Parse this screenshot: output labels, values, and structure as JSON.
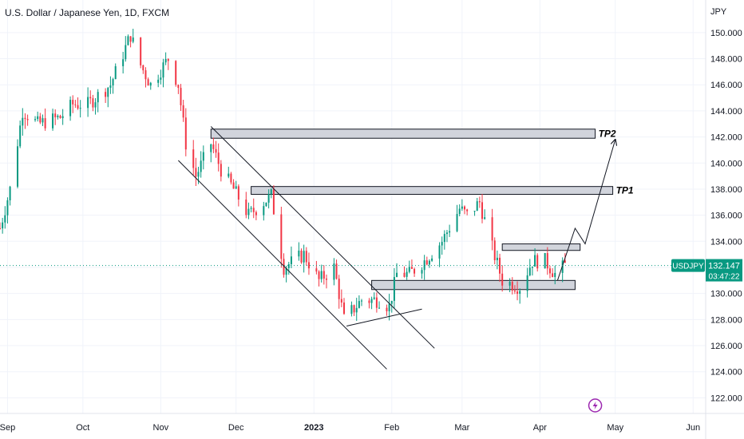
{
  "chart_data": {
    "type": "candlestick",
    "title": "U.S. Dollar / Japanese Yen, 1D, FXCM",
    "currency_label": "JPY",
    "symbol": "USDJPY",
    "last_price": "132.147",
    "countdown": "03:47:22",
    "ylim": [
      120.8,
      152.5
    ],
    "y_ticks": [
      "150.000",
      "148.000",
      "146.000",
      "144.000",
      "142.000",
      "140.000",
      "138.000",
      "136.000",
      "134.000",
      "132.000",
      "130.000",
      "128.000",
      "126.000",
      "124.000",
      "122.000"
    ],
    "x_ticks": [
      "Sep",
      "Oct",
      "Nov",
      "Dec",
      "2023",
      "Feb",
      "Mar",
      "Apr",
      "May",
      "Jun"
    ],
    "x_tick_dates": [
      "2022-09-01",
      "2022-10-01",
      "2022-11-01",
      "2022-12-01",
      "2023-01-01",
      "2023-02-01",
      "2023-03-01",
      "2023-04-01",
      "2023-05-01",
      "2023-06-01"
    ],
    "x_range": [
      "2022-08-29",
      "2023-06-06"
    ],
    "up_color": "#089981",
    "down_color": "#f23645",
    "waypoints": [
      [
        "2022-08-29",
        135.0
      ],
      [
        "2022-09-02",
        138.0
      ],
      [
        "2022-09-07",
        144.0
      ],
      [
        "2022-09-13",
        143.0
      ],
      [
        "2022-09-22",
        143.5
      ],
      [
        "2022-09-27",
        144.5
      ],
      [
        "2022-10-03",
        144.5
      ],
      [
        "2022-10-12",
        146.0
      ],
      [
        "2022-10-20",
        149.8
      ],
      [
        "2022-10-24",
        147.5
      ],
      [
        "2022-10-28",
        146.0
      ],
      [
        "2022-11-04",
        148.0
      ],
      [
        "2022-11-08",
        146.0
      ],
      [
        "2022-11-11",
        141.5
      ],
      [
        "2022-11-15",
        139.0
      ],
      [
        "2022-11-21",
        141.5
      ],
      [
        "2022-11-25",
        139.5
      ],
      [
        "2022-11-30",
        138.0
      ],
      [
        "2022-12-06",
        136.0
      ],
      [
        "2022-12-09",
        136.5
      ],
      [
        "2022-12-15",
        137.5
      ],
      [
        "2022-12-20",
        132.0
      ],
      [
        "2022-12-28",
        133.0
      ],
      [
        "2023-01-03",
        131.0
      ],
      [
        "2023-01-09",
        132.0
      ],
      [
        "2023-01-13",
        128.0
      ],
      [
        "2023-01-20",
        129.5
      ],
      [
        "2023-01-27",
        129.5
      ],
      [
        "2023-01-31",
        129.0
      ],
      [
        "2023-02-03",
        131.5
      ],
      [
        "2023-02-08",
        131.5
      ],
      [
        "2023-02-14",
        132.5
      ],
      [
        "2023-02-21",
        134.0
      ],
      [
        "2023-02-28",
        136.5
      ],
      [
        "2023-03-03",
        136.0
      ],
      [
        "2023-03-08",
        137.0
      ],
      [
        "2023-03-13",
        133.5
      ],
      [
        "2023-03-17",
        131.0
      ],
      [
        "2023-03-24",
        130.5
      ],
      [
        "2023-03-29",
        132.5
      ],
      [
        "2023-04-03",
        132.5
      ],
      [
        "2023-04-07",
        131.5
      ],
      [
        "2023-04-11",
        132.15
      ]
    ],
    "zones": [
      {
        "name": "TP2",
        "from": "2022-11-21",
        "to": "2023-04-23",
        "low": 141.9,
        "high": 142.6
      },
      {
        "name": "TP1",
        "from": "2022-12-07",
        "to": "2023-04-30",
        "low": 137.6,
        "high": 138.2
      },
      {
        "name": "",
        "from": "2023-03-17",
        "to": "2023-04-17",
        "low": 133.3,
        "high": 133.8
      },
      {
        "name": "",
        "from": "2023-01-24",
        "to": "2023-04-15",
        "low": 130.3,
        "high": 131.0
      }
    ],
    "channel_lines": [
      [
        [
          "2022-11-21",
          142.8
        ],
        [
          "2023-02-18",
          125.8
        ]
      ],
      [
        [
          "2022-11-08",
          140.2
        ],
        [
          "2023-01-30",
          124.2
        ]
      ],
      [
        [
          "2023-01-14",
          127.5
        ],
        [
          "2023-02-13",
          128.8
        ]
      ]
    ],
    "projection_path": [
      [
        "2023-04-08",
        131.0
      ],
      [
        "2023-04-15",
        135.0
      ],
      [
        "2023-04-19",
        133.8
      ],
      [
        "2023-05-01",
        141.8
      ]
    ]
  },
  "annotations": {
    "tp1": "TP1",
    "tp2": "TP2"
  }
}
